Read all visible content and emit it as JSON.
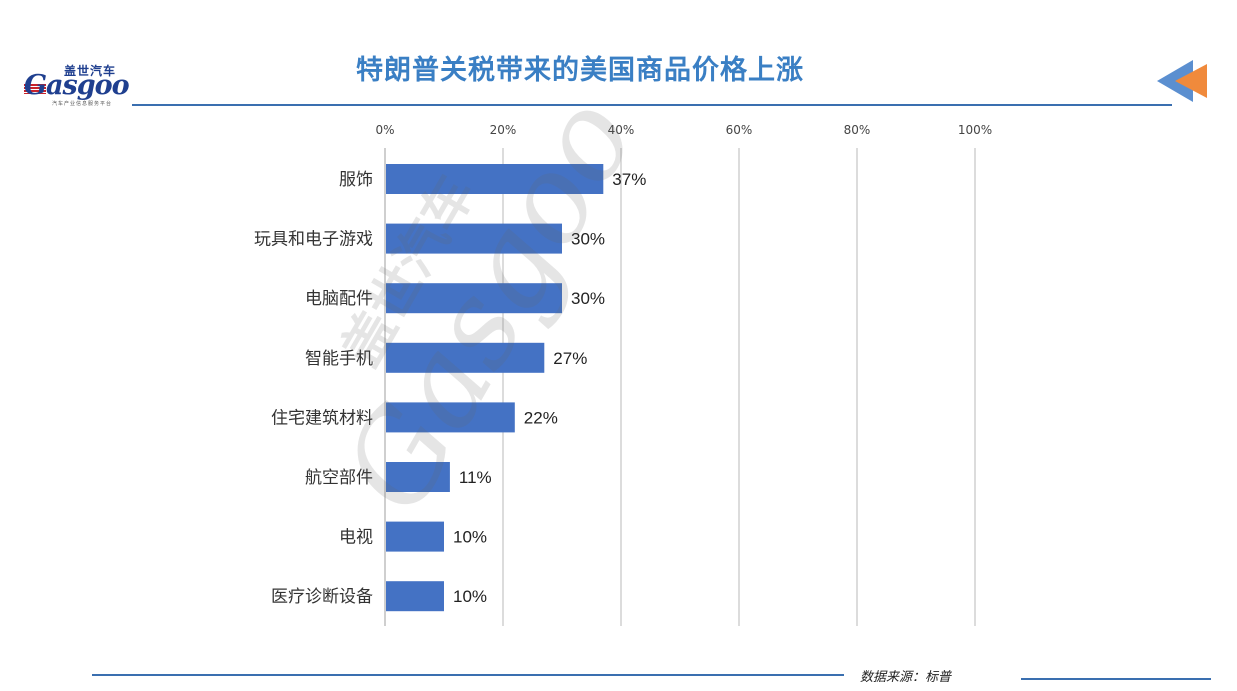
{
  "header": {
    "logo_cn": "盖世汽车",
    "logo_en": "Gasgoo",
    "logo_sub": "汽车产业信息服务平台",
    "title": "特朗普关税带来的美国商品价格上涨"
  },
  "footer": {
    "source": "数据来源：标普"
  },
  "colors": {
    "bar": "#4472c4",
    "title": "#3a7fc4",
    "rule": "#3a6fb0",
    "arrow_blue": "#5b8fd0",
    "arrow_orange": "#f08a3c"
  },
  "chart_data": {
    "type": "bar",
    "orientation": "horizontal",
    "title": "特朗普关税带来的美国商品价格上涨",
    "categories": [
      "服饰",
      "玩具和电子游戏",
      "电脑配件",
      "智能手机",
      "住宅建筑材料",
      "航空部件",
      "电视",
      "医疗诊断设备"
    ],
    "values": [
      37,
      30,
      30,
      27,
      22,
      11,
      10,
      10
    ],
    "data_labels": [
      "37%",
      "30%",
      "30%",
      "27%",
      "22%",
      "11%",
      "10%",
      "10%"
    ],
    "x_ticks": [
      "0%",
      "20%",
      "40%",
      "60%",
      "80%",
      "100%"
    ],
    "x_tick_values": [
      0,
      20,
      40,
      60,
      80,
      100
    ],
    "xlim": [
      0,
      100
    ],
    "x_axis_position": "top",
    "grid": "vertical",
    "legend": "none",
    "xlabel": "",
    "ylabel": ""
  }
}
